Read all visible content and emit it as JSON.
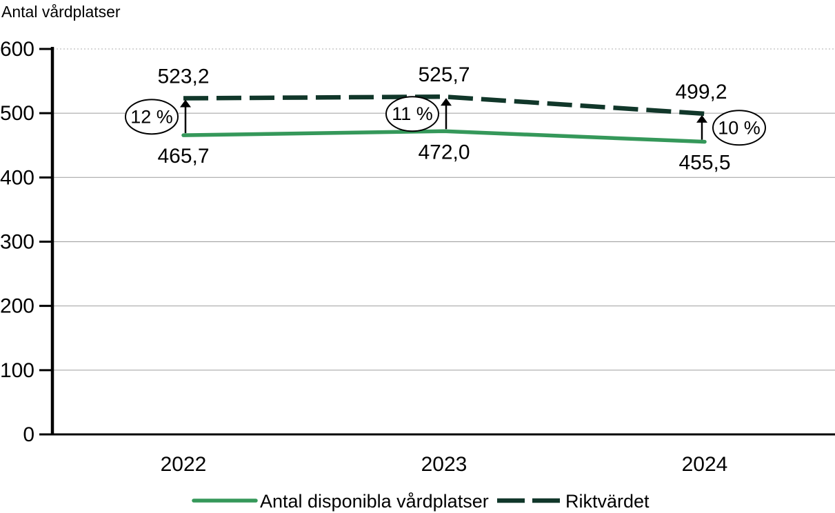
{
  "chart_data": {
    "type": "line",
    "title": "Antal vårdplatser",
    "xlabel": "",
    "ylabel": "",
    "x": [
      "2022",
      "2023",
      "2024"
    ],
    "ylim": [
      0,
      600
    ],
    "grid": "horizontal",
    "legend_position": "bottom",
    "yticks": [
      {
        "label": "600",
        "value": 600
      },
      {
        "label": "500",
        "value": 500
      },
      {
        "label": "400",
        "value": 400
      },
      {
        "label": "300",
        "value": 300
      },
      {
        "label": "200",
        "value": 200
      },
      {
        "label": "100",
        "value": 100
      },
      {
        "label": "0",
        "value": 0
      }
    ],
    "series": [
      {
        "name": "Antal disponibla vårdplatser",
        "style": "solid",
        "color": "#35985A",
        "values": [
          465.7,
          472.0,
          455.5
        ],
        "labels": [
          "465,7",
          "472,0",
          "455,5"
        ]
      },
      {
        "name": "Riktvärdet",
        "style": "dashed",
        "color": "#11372A",
        "values": [
          523.2,
          525.7,
          499.2
        ],
        "labels": [
          "523,2",
          "525,7",
          "499,2"
        ]
      }
    ],
    "annotations": [
      {
        "label": "12 %",
        "side": "left"
      },
      {
        "label": "11 %",
        "side": "left"
      },
      {
        "label": "10 %",
        "side": "right"
      }
    ]
  },
  "colors": {
    "solid_line": "#35985A",
    "dashed_line": "#11372A",
    "gridline": "#A8A8A8",
    "axis": "#000000",
    "annotation_fill": "#FFFFFF"
  }
}
